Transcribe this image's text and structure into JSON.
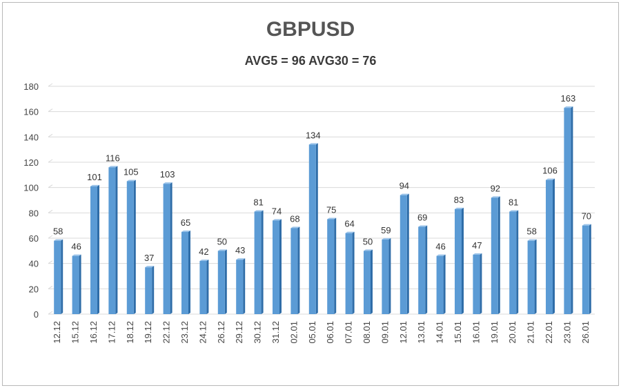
{
  "chart_data": {
    "type": "bar",
    "title": "GBPUSD",
    "subtitle": "AVG5 = 96 AVG30 = 76",
    "xlabel": "",
    "ylabel": "",
    "ylim": [
      0,
      180
    ],
    "yticks": [
      0,
      20,
      40,
      60,
      80,
      100,
      120,
      140,
      160,
      180
    ],
    "grid": true,
    "categories": [
      "12.12",
      "15.12",
      "16.12",
      "17.12",
      "18.12",
      "19.12",
      "22.12",
      "23.12",
      "24.12",
      "26.12",
      "29.12",
      "30.12",
      "31.12",
      "02.01",
      "05.01",
      "06.01",
      "07.01",
      "08.01",
      "09.01",
      "12.01",
      "13.01",
      "14.01",
      "15.01",
      "16.01",
      "19.01",
      "20.01",
      "21.01",
      "22.01",
      "23.01",
      "26.01"
    ],
    "values": [
      58,
      46,
      101,
      116,
      105,
      37,
      103,
      65,
      42,
      50,
      43,
      81,
      74,
      68,
      134,
      75,
      64,
      50,
      59,
      94,
      69,
      46,
      83,
      47,
      92,
      81,
      58,
      106,
      163,
      70
    ],
    "colors": {
      "bar_front": "#5b9bd5",
      "bar_side": "#2f6da8",
      "bar_top": "#9cc4ea",
      "grid": "#d9d9d9"
    }
  }
}
